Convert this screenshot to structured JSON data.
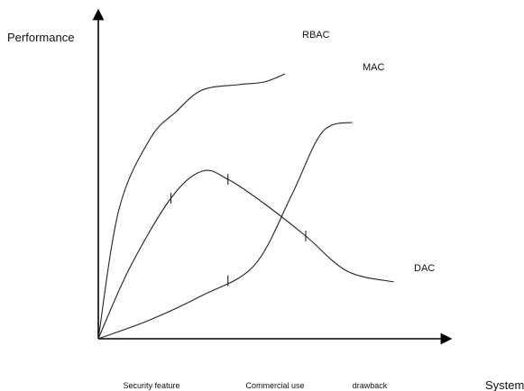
{
  "chart_data": {
    "type": "line",
    "title": "",
    "ylabel": "Performance",
    "xlabel": "System",
    "categories": [
      "Security feature",
      "Commercial use",
      "drawback"
    ],
    "series": [
      {
        "name": "RBAC",
        "points": [
          [
            0,
            0
          ],
          [
            0.2,
            0.48
          ],
          [
            0.5,
            0.74
          ],
          [
            0.75,
            0.84
          ],
          [
            1.0,
            0.92
          ],
          [
            1.35,
            0.94
          ],
          [
            1.6,
            0.95
          ],
          [
            1.8,
            0.98
          ]
        ]
      },
      {
        "name": "MAC",
        "points": [
          [
            0,
            0
          ],
          [
            0.5,
            0.07
          ],
          [
            1.0,
            0.16
          ],
          [
            1.5,
            0.27
          ],
          [
            1.85,
            0.52
          ],
          [
            2.1,
            0.73
          ],
          [
            2.25,
            0.79
          ],
          [
            2.45,
            0.8
          ]
        ]
      },
      {
        "name": "DAC",
        "points": [
          [
            0,
            0
          ],
          [
            0.3,
            0.26
          ],
          [
            0.7,
            0.52
          ],
          [
            1.0,
            0.62
          ],
          [
            1.25,
            0.59
          ],
          [
            1.6,
            0.5
          ],
          [
            2.0,
            0.38
          ],
          [
            2.4,
            0.25
          ],
          [
            2.85,
            0.21
          ]
        ]
      }
    ],
    "markers": [
      {
        "series": "DAC",
        "x": 0.7
      },
      {
        "series": "DAC",
        "x": 1.25
      },
      {
        "series": "MAC",
        "x": 1.25
      },
      {
        "series": "DAC",
        "x": 2.0
      }
    ]
  }
}
